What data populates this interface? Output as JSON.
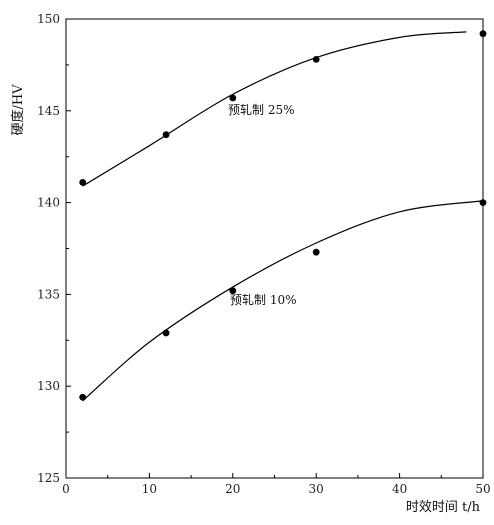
{
  "chart_data": {
    "type": "scatter",
    "xlabel": "时效时间 t/h",
    "ylabel": "硬度/HV",
    "xlim": [
      0,
      50
    ],
    "ylim": [
      125,
      150
    ],
    "xticks": [
      "0",
      "10",
      "20",
      "30",
      "40",
      "50"
    ],
    "yticks": [
      "125",
      "130",
      "135",
      "140",
      "145",
      "150"
    ],
    "grid": false,
    "series": [
      {
        "name": "预轧制 25%",
        "x": [
          2,
          12,
          20,
          30,
          50
        ],
        "y": [
          141.1,
          143.7,
          145.7,
          147.8,
          149.2
        ],
        "fit_curve": [
          [
            2,
            140.9
          ],
          [
            10,
            143.1
          ],
          [
            20,
            145.9
          ],
          [
            30,
            147.9
          ],
          [
            40,
            149.0
          ],
          [
            48,
            149.3
          ]
        ]
      },
      {
        "name": "预轧制 10%",
        "x": [
          2,
          12,
          20,
          30,
          50
        ],
        "y": [
          129.4,
          132.9,
          135.2,
          137.3,
          140.0
        ],
        "fit_curve": [
          [
            2,
            129.2
          ],
          [
            10,
            132.4
          ],
          [
            20,
            135.4
          ],
          [
            30,
            137.8
          ],
          [
            40,
            139.5
          ],
          [
            50,
            140.1
          ]
        ]
      }
    ],
    "annotations": [
      "预轧制 25%",
      "预轧制 10%"
    ]
  }
}
